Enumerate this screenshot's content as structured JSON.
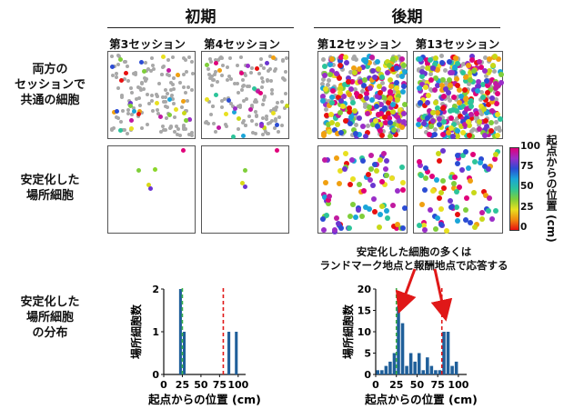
{
  "headers": {
    "early": "初期",
    "late": "後期"
  },
  "sessions": {
    "s3": "第3セッション",
    "s4": "第4セッション",
    "s12": "第12セッション",
    "s13": "第13セッション"
  },
  "rows": {
    "common": [
      "両方の",
      "セッションで",
      "共通の細胞"
    ],
    "stable": [
      "安定化した",
      "場所細胞"
    ],
    "dist": [
      "安定化した",
      "場所細胞",
      "の分布"
    ]
  },
  "colorbar": {
    "label": "起点からの位置 (cm)",
    "ticks": [
      "100",
      "75",
      "50",
      "25",
      "0"
    ]
  },
  "annotation": [
    "安定化した細胞の多くは",
    "ランドマーク地点と報酬地点で応答する"
  ],
  "chart_data": [
    {
      "type": "bar",
      "name": "early_distribution",
      "xlabel": "起点からの位置 (cm)",
      "ylabel": "場所細胞数",
      "xlim": [
        0,
        110
      ],
      "ylim": [
        0,
        2
      ],
      "xticks": [
        0,
        25,
        50,
        75,
        100
      ],
      "yticks": [
        0,
        1,
        2
      ],
      "bin_width": 5,
      "bins": [
        [
          20,
          2
        ],
        [
          25,
          1
        ],
        [
          85,
          1
        ],
        [
          95,
          1
        ]
      ],
      "landmark_line": 25,
      "reward_line": 80
    },
    {
      "type": "bar",
      "name": "late_distribution",
      "xlabel": "起点からの位置 (cm)",
      "ylabel": "場所細胞数",
      "xlim": [
        0,
        110
      ],
      "ylim": [
        0,
        20
      ],
      "xticks": [
        0,
        25,
        50,
        75,
        100
      ],
      "yticks": [
        0,
        5,
        10,
        15,
        20
      ],
      "bin_width": 5,
      "bins": [
        [
          0,
          1
        ],
        [
          5,
          1
        ],
        [
          10,
          2
        ],
        [
          15,
          3
        ],
        [
          20,
          5
        ],
        [
          25,
          16
        ],
        [
          30,
          12
        ],
        [
          35,
          2
        ],
        [
          40,
          5
        ],
        [
          45,
          3
        ],
        [
          50,
          5
        ],
        [
          55,
          1
        ],
        [
          60,
          4
        ],
        [
          65,
          2
        ],
        [
          70,
          1
        ],
        [
          75,
          1
        ],
        [
          80,
          10
        ],
        [
          85,
          10
        ],
        [
          90,
          2
        ],
        [
          95,
          3
        ]
      ],
      "landmark_line": 25,
      "reward_line": 80
    }
  ]
}
